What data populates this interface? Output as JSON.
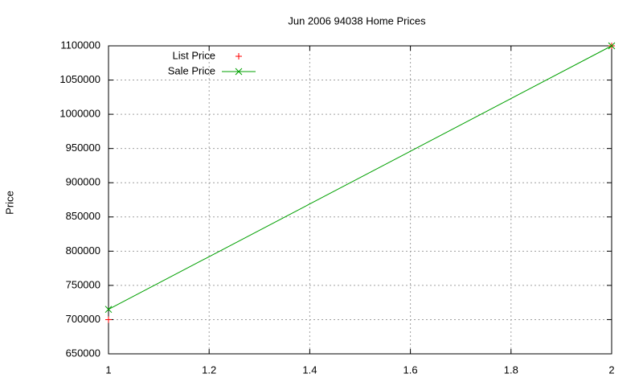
{
  "chart_data": {
    "type": "line",
    "title": "Jun 2006 94038 Home Prices",
    "ylabel": "Price",
    "x": [
      1,
      2
    ],
    "series": [
      {
        "name": "List Price",
        "color": "#ff0000",
        "style": "points",
        "marker": "+",
        "values": [
          700000,
          1100000
        ]
      },
      {
        "name": "Sale Price",
        "color": "#00a000",
        "style": "linespoints",
        "marker": "x",
        "values": [
          715000,
          1100000
        ]
      }
    ],
    "xlim": [
      1,
      2
    ],
    "xticks": [
      1,
      1.2,
      1.4,
      1.6,
      1.8,
      2
    ],
    "ylim": [
      650000,
      1100000
    ],
    "yticks": [
      650000,
      700000,
      750000,
      800000,
      850000,
      900000,
      950000,
      1000000,
      1050000,
      1100000
    ],
    "grid": true,
    "legend": "top-left"
  }
}
